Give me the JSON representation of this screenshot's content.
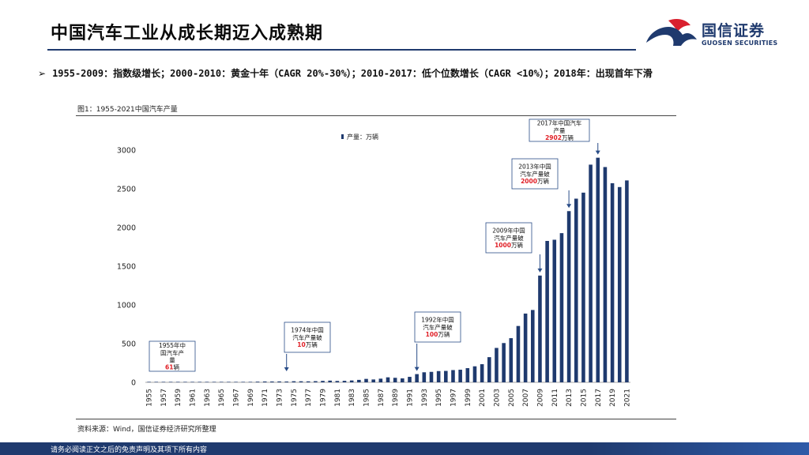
{
  "header": {
    "title": "中国汽车工业从成长期迈入成熟期",
    "logo_cn": "国信证券",
    "logo_en": "GUOSEN SECURITIES"
  },
  "bullet": {
    "marker": "➢",
    "text": "1955-2009：指数级增长；2000-2010：黄金十年（CAGR 20%-30%）；2010-2017：低个位数增长（CAGR <10%）；2018年：出现首年下滑"
  },
  "figure": {
    "label": "图1：1955-2021中国汽车产量",
    "source": "资料来源：Wind，国信证券经济研究所整理"
  },
  "footer": {
    "text": "请务必阅读正文之后的免责声明及其项下所有内容"
  },
  "colors": {
    "bar": "#1f3a6e",
    "brand": "#1f3a6e",
    "brand_red": "#d9202e",
    "highlight": "#e01f26"
  },
  "chart_data": {
    "type": "bar",
    "title": "1955-2021中国汽车产量",
    "legend": "产量：万辆",
    "xlabel": "",
    "ylabel": "",
    "ylim": [
      0,
      3000
    ],
    "yticks": [
      0,
      500,
      1000,
      1500,
      2000,
      2500,
      3000
    ],
    "x_tick_labels": [
      "1955",
      "1957",
      "1959",
      "1961",
      "1963",
      "1965",
      "1967",
      "1969",
      "1971",
      "1973",
      "1975",
      "1977",
      "1979",
      "1981",
      "1983",
      "1985",
      "1987",
      "1989",
      "1991",
      "1993",
      "1995",
      "1997",
      "1999",
      "2001",
      "2003",
      "2005",
      "2007",
      "2009",
      "2011",
      "2013",
      "2015",
      "2017",
      "2019",
      "2021"
    ],
    "categories": [
      "1955",
      "1956",
      "1957",
      "1958",
      "1959",
      "1960",
      "1961",
      "1962",
      "1963",
      "1964",
      "1965",
      "1966",
      "1967",
      "1968",
      "1969",
      "1970",
      "1971",
      "1972",
      "1973",
      "1974",
      "1975",
      "1976",
      "1977",
      "1978",
      "1979",
      "1980",
      "1981",
      "1982",
      "1983",
      "1984",
      "1985",
      "1986",
      "1987",
      "1988",
      "1989",
      "1990",
      "1991",
      "1992",
      "1993",
      "1994",
      "1995",
      "1996",
      "1997",
      "1998",
      "1999",
      "2000",
      "2001",
      "2002",
      "2003",
      "2004",
      "2005",
      "2006",
      "2007",
      "2008",
      "2009",
      "2010",
      "2011",
      "2012",
      "2013",
      "2014",
      "2015",
      "2016",
      "2017",
      "2018",
      "2019",
      "2020",
      "2021"
    ],
    "values": [
      0.0061,
      0.03,
      0.8,
      1.6,
      1.96,
      2.26,
      0.36,
      0.97,
      2.09,
      2.8,
      4.05,
      5.6,
      2.04,
      2.5,
      5.3,
      8.7,
      11.1,
      10.8,
      11.6,
      10.5,
      13.98,
      13.52,
      12.54,
      14.91,
      18.57,
      22.23,
      17.56,
      19.63,
      23.98,
      31.64,
      44.34,
      36.98,
      47.3,
      64.7,
      58.35,
      50.9,
      70.9,
      106.2,
      129.7,
      135.3,
      145.3,
      147.5,
      158.3,
      162.9,
      183.2,
      206.9,
      234.2,
      325.1,
      444.4,
      507.4,
      570.5,
      727.9,
      888.2,
      934.5,
      1379.1,
      1826.5,
      1841.9,
      1927.2,
      2211.7,
      2372.5,
      2450.3,
      2811.9,
      2901.5,
      2780.9,
      2572.1,
      2522.5,
      2608.2
    ],
    "annotations": [
      {
        "year": "1955",
        "lines": [
          "1955年中",
          "国汽车产",
          "量"
        ],
        "highlight": "61",
        "suffix": "辆"
      },
      {
        "year": "1974",
        "lines": [
          "1974年中国",
          "汽车产量破"
        ],
        "highlight": "10",
        "suffix": "万辆"
      },
      {
        "year": "1992",
        "lines": [
          "1992年中国",
          "汽车产量破"
        ],
        "highlight": "100",
        "suffix": "万辆"
      },
      {
        "year": "2009",
        "lines": [
          "2009年中国",
          "汽车产量破"
        ],
        "highlight": "1000",
        "suffix": "万辆"
      },
      {
        "year": "2013",
        "lines": [
          "2013年中国",
          "汽车产量破"
        ],
        "highlight": "2000",
        "suffix": "万辆"
      },
      {
        "year": "2017",
        "lines": [
          "2017年中国汽车",
          "产量"
        ],
        "highlight": "2902",
        "suffix": "万辆"
      }
    ]
  }
}
